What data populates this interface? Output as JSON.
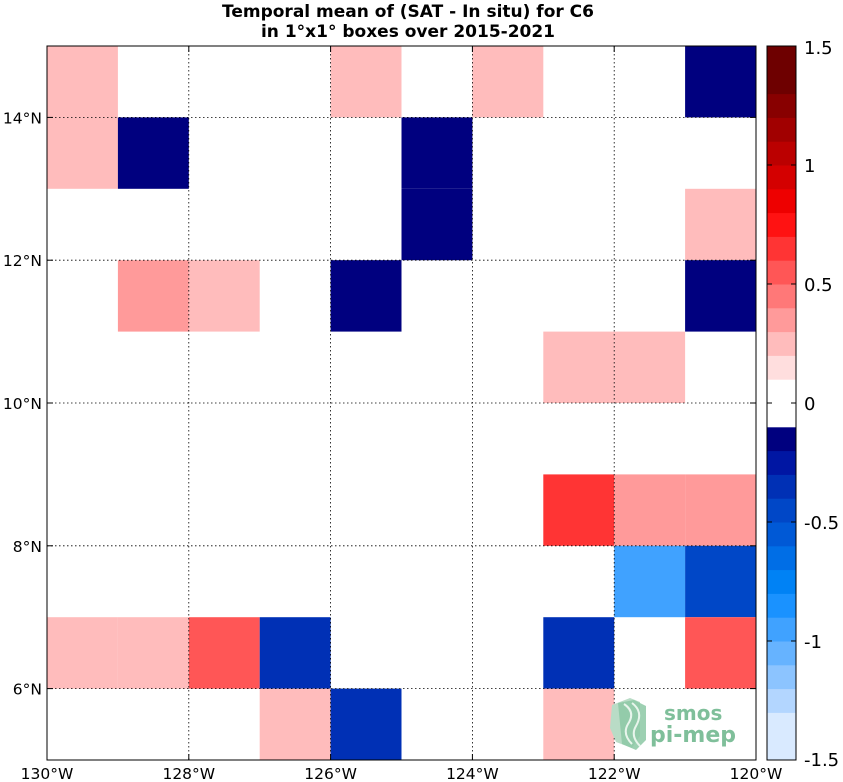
{
  "chart_data": {
    "type": "heatmap",
    "title": "Temporal mean of (SAT - In situ) for C6",
    "subtitle": "in 1°x1° boxes over 2015-2021",
    "xlim": [
      -130,
      -120
    ],
    "ylim": [
      5,
      15
    ],
    "x_ticks": [
      -130,
      -128,
      -126,
      -124,
      -122,
      -120
    ],
    "x_tick_labels": [
      "130°W",
      "128°W",
      "126°W",
      "124°W",
      "122°W",
      "120°W"
    ],
    "y_ticks": [
      6,
      8,
      10,
      12,
      14
    ],
    "y_tick_labels": [
      "6°N",
      "8°N",
      "10°N",
      "12°N",
      "14°N"
    ],
    "grid": "dotted",
    "colorbar": {
      "min": -1.5,
      "max": 1.5,
      "ticks": [
        1.5,
        1,
        0.5,
        0,
        -0.5,
        -1,
        -1.5
      ],
      "tick_labels": [
        "1.5",
        "1",
        "0.5",
        "0",
        "-0.5",
        "-1",
        "-1.5"
      ],
      "placement": "right"
    },
    "cells": [
      {
        "lon": -130,
        "lat": 14,
        "value": 0.2
      },
      {
        "lon": -130,
        "lat": 13,
        "value": 0.2
      },
      {
        "lon": -129,
        "lat": 13,
        "value": -0.15
      },
      {
        "lon": -126,
        "lat": 14,
        "value": 0.2
      },
      {
        "lon": -124,
        "lat": 14,
        "value": 0.2
      },
      {
        "lon": -125,
        "lat": 12,
        "value": -0.15
      },
      {
        "lon": -125,
        "lat": 13,
        "value": -0.15
      },
      {
        "lon": -121,
        "lat": 14,
        "value": -0.15
      },
      {
        "lon": -121,
        "lat": 12,
        "value": 0.2
      },
      {
        "lon": -129,
        "lat": 11,
        "value": 0.35
      },
      {
        "lon": -128,
        "lat": 11,
        "value": 0.2
      },
      {
        "lon": -126,
        "lat": 11,
        "value": -0.15
      },
      {
        "lon": -121,
        "lat": 11,
        "value": -0.15
      },
      {
        "lon": -123,
        "lat": 10,
        "value": 0.2
      },
      {
        "lon": -122,
        "lat": 10,
        "value": 0.2
      },
      {
        "lon": -123,
        "lat": 8,
        "value": 0.6
      },
      {
        "lon": -122,
        "lat": 8,
        "value": 0.35
      },
      {
        "lon": -121,
        "lat": 8,
        "value": 0.35
      },
      {
        "lon": -122,
        "lat": 7,
        "value": -0.9
      },
      {
        "lon": -121,
        "lat": 7,
        "value": -0.4
      },
      {
        "lon": -130,
        "lat": 6,
        "value": 0.2
      },
      {
        "lon": -129,
        "lat": 6,
        "value": 0.2
      },
      {
        "lon": -128,
        "lat": 6,
        "value": 0.5
      },
      {
        "lon": -127,
        "lat": 6,
        "value": -0.3
      },
      {
        "lon": -123,
        "lat": 6,
        "value": -0.3
      },
      {
        "lon": -121,
        "lat": 6,
        "value": 0.5
      },
      {
        "lon": -127,
        "lat": 5,
        "value": 0.2
      },
      {
        "lon": -126,
        "lat": 5,
        "value": -0.3
      },
      {
        "lon": -123,
        "lat": 5,
        "value": 0.2
      }
    ]
  },
  "logo": {
    "line1": "smos",
    "line2": "pi-mep"
  }
}
